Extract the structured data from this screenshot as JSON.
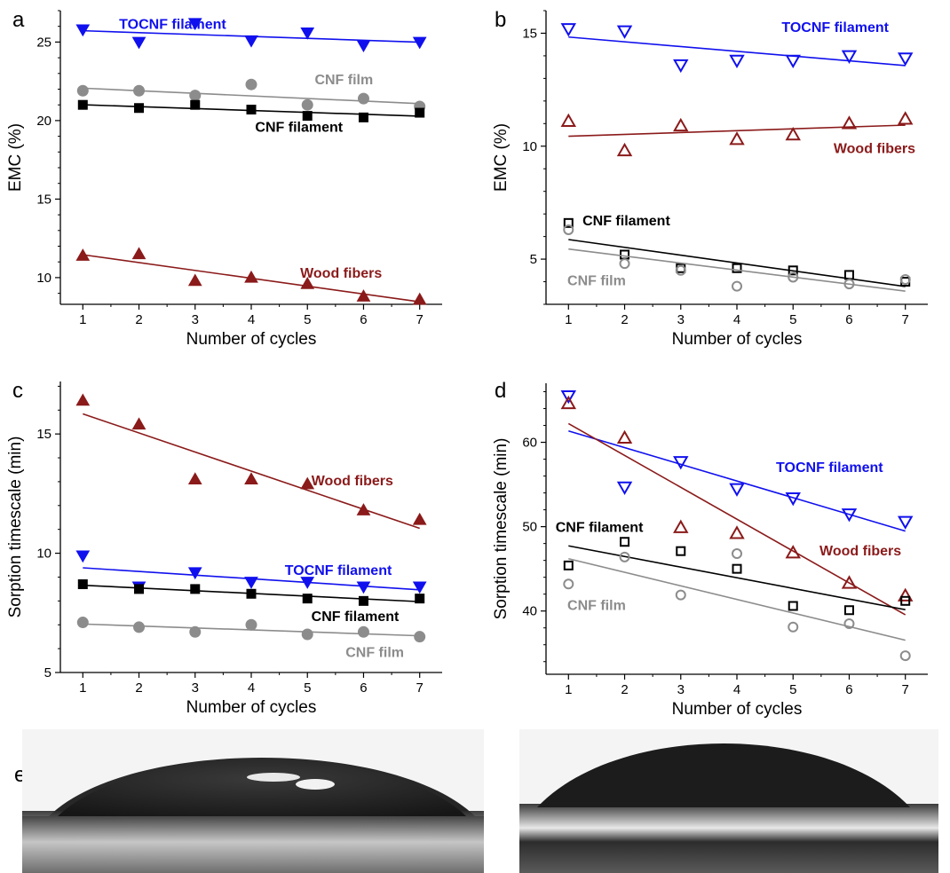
{
  "colors": {
    "tocnf": "#1010ee",
    "wood": "#8b1a1a",
    "cnf_filament": "#000000",
    "cnf_film": "#8c8c8c"
  },
  "chart_data": [
    {
      "panel": "a",
      "type": "scatter",
      "xlabel": "Number of cycles",
      "ylabel": "EMC (%)",
      "xlim": [
        0.6,
        7.4
      ],
      "ylim": [
        8.3,
        27
      ],
      "xticks": [
        1,
        2,
        3,
        4,
        5,
        6,
        7
      ],
      "yticks": [
        10,
        15,
        20,
        25
      ],
      "trendlines": true,
      "series": [
        {
          "name": "TOCNF filament",
          "color": "tocnf",
          "marker": "triangle-down",
          "filled": true,
          "x": [
            1,
            2,
            3,
            4,
            5,
            6,
            7
          ],
          "y": [
            25.8,
            25.0,
            26.2,
            25.1,
            25.6,
            24.8,
            25.0
          ],
          "label_pos": [
            2.6,
            25.85
          ],
          "label_anchor": "middle"
        },
        {
          "name": "CNF film",
          "color": "cnf_film",
          "marker": "circle",
          "filled": true,
          "x": [
            1,
            2,
            3,
            4,
            5,
            6,
            7
          ],
          "y": [
            21.9,
            21.9,
            21.6,
            22.3,
            21.0,
            21.4,
            20.9
          ],
          "label_pos": [
            5.65,
            22.3
          ],
          "label_anchor": "middle"
        },
        {
          "name": "CNF filament",
          "color": "cnf_filament",
          "marker": "square",
          "filled": true,
          "x": [
            1,
            2,
            3,
            4,
            5,
            6,
            7
          ],
          "y": [
            21.0,
            20.8,
            21.0,
            20.7,
            20.3,
            20.2,
            20.5
          ],
          "label_pos": [
            4.85,
            19.3
          ],
          "label_anchor": "middle"
        },
        {
          "name": "Wood fibers",
          "color": "wood",
          "marker": "triangle-up",
          "filled": true,
          "x": [
            1,
            2,
            3,
            4,
            5,
            6,
            7
          ],
          "y": [
            11.4,
            11.5,
            9.8,
            10.0,
            9.6,
            8.8,
            8.6
          ],
          "label_pos": [
            5.6,
            10.0
          ],
          "label_anchor": "middle"
        }
      ]
    },
    {
      "panel": "b",
      "type": "scatter",
      "xlabel": "Number of cycles",
      "ylabel": "EMC (%)",
      "xlim": [
        0.6,
        7.4
      ],
      "ylim": [
        3.0,
        16.0
      ],
      "xticks": [
        1,
        2,
        3,
        4,
        5,
        6,
        7
      ],
      "yticks": [
        5,
        10,
        15
      ],
      "trendlines": true,
      "series": [
        {
          "name": "TOCNF filament",
          "color": "tocnf",
          "marker": "triangle-down",
          "filled": false,
          "x": [
            1,
            2,
            3,
            4,
            5,
            6,
            7
          ],
          "y": [
            15.2,
            15.1,
            13.6,
            13.8,
            13.8,
            14.0,
            13.9
          ],
          "label_pos": [
            5.75,
            15.05
          ],
          "label_anchor": "middle"
        },
        {
          "name": "Wood fibers",
          "color": "wood",
          "marker": "triangle-up",
          "filled": false,
          "x": [
            1,
            2,
            3,
            4,
            5,
            6,
            7
          ],
          "y": [
            11.1,
            9.8,
            10.9,
            10.3,
            10.5,
            11.0,
            11.2
          ],
          "label_pos": [
            6.45,
            9.7
          ],
          "label_anchor": "middle"
        },
        {
          "name": "CNF filament",
          "color": "cnf_filament",
          "marker": "square",
          "filled": false,
          "x": [
            1,
            2,
            3,
            4,
            5,
            6,
            7
          ],
          "y": [
            6.6,
            5.2,
            4.6,
            4.6,
            4.5,
            4.3,
            4.0
          ],
          "label_pos": [
            1.25,
            6.5
          ],
          "label_anchor": "start"
        },
        {
          "name": "CNF film",
          "color": "cnf_film",
          "marker": "circle",
          "filled": false,
          "x": [
            1,
            2,
            3,
            4,
            5,
            6,
            7
          ],
          "y": [
            6.3,
            4.8,
            4.5,
            3.8,
            4.2,
            3.9,
            4.1
          ],
          "label_pos": [
            1.5,
            3.85
          ],
          "label_anchor": "middle"
        }
      ]
    },
    {
      "panel": "c",
      "type": "scatter",
      "xlabel": "Number of cycles",
      "ylabel": "Sorption timescale (min)",
      "xlim": [
        0.6,
        7.4
      ],
      "ylim": [
        5,
        17.2
      ],
      "xticks": [
        1,
        2,
        3,
        4,
        5,
        6,
        7
      ],
      "yticks": [
        5,
        10,
        15
      ],
      "trendlines": true,
      "series": [
        {
          "name": "Wood fibers",
          "color": "wood",
          "marker": "triangle-up",
          "filled": true,
          "x": [
            1,
            2,
            3,
            4,
            5,
            6,
            7
          ],
          "y": [
            16.4,
            15.4,
            13.1,
            13.1,
            12.9,
            11.8,
            11.4
          ],
          "label_pos": [
            5.8,
            12.85
          ],
          "label_anchor": "middle"
        },
        {
          "name": "TOCNF filament",
          "color": "tocnf",
          "marker": "triangle-down",
          "filled": true,
          "x": [
            1,
            2,
            3,
            4,
            5,
            6,
            7
          ],
          "y": [
            9.9,
            8.6,
            9.2,
            8.8,
            8.8,
            8.6,
            8.6
          ],
          "label_pos": [
            5.55,
            9.1
          ],
          "label_anchor": "middle"
        },
        {
          "name": "CNF filament",
          "color": "cnf_filament",
          "marker": "square",
          "filled": true,
          "x": [
            1,
            2,
            3,
            4,
            5,
            6,
            7
          ],
          "y": [
            8.7,
            8.5,
            8.5,
            8.3,
            8.1,
            8.0,
            8.1
          ],
          "label_pos": [
            5.85,
            7.15
          ],
          "label_anchor": "middle"
        },
        {
          "name": "CNF film",
          "color": "cnf_film",
          "marker": "circle",
          "filled": true,
          "x": [
            1,
            2,
            3,
            4,
            5,
            6,
            7
          ],
          "y": [
            7.1,
            6.9,
            6.7,
            7.0,
            6.6,
            6.7,
            6.5
          ],
          "label_pos": [
            6.2,
            5.65
          ],
          "label_anchor": "middle"
        }
      ]
    },
    {
      "panel": "d",
      "type": "scatter",
      "xlabel": "Number of cycles",
      "ylabel": "Sorption timescale (min)",
      "xlim": [
        0.6,
        7.4
      ],
      "ylim": [
        32.5,
        67
      ],
      "xticks": [
        1,
        2,
        3,
        4,
        5,
        6,
        7
      ],
      "yticks": [
        40,
        50,
        60
      ],
      "trendlines": true,
      "series": [
        {
          "name": "TOCNF filament",
          "color": "tocnf",
          "marker": "triangle-down",
          "filled": false,
          "x": [
            1,
            2,
            3,
            4,
            5,
            6,
            7
          ],
          "y": [
            65.5,
            54.7,
            57.7,
            54.5,
            53.4,
            51.5,
            50.6
          ],
          "label_pos": [
            5.65,
            56.5
          ],
          "label_anchor": "middle"
        },
        {
          "name": "Wood fibers",
          "color": "wood",
          "marker": "triangle-up",
          "filled": false,
          "x": [
            1,
            2,
            3,
            4,
            5,
            6,
            7
          ],
          "y": [
            64.6,
            60.5,
            49.9,
            49.2,
            46.9,
            43.3,
            41.8
          ],
          "label_pos": [
            6.2,
            46.6
          ],
          "label_anchor": "middle"
        },
        {
          "name": "CNF filament",
          "color": "cnf_filament",
          "marker": "square",
          "filled": false,
          "x": [
            1,
            2,
            3,
            4,
            5,
            6,
            7
          ],
          "y": [
            45.4,
            48.2,
            47.1,
            45.0,
            40.6,
            40.1,
            41.2
          ],
          "label_pos": [
            1.55,
            49.4
          ],
          "label_anchor": "middle"
        },
        {
          "name": "CNF film",
          "color": "cnf_film",
          "marker": "circle",
          "filled": false,
          "x": [
            1,
            2,
            3,
            4,
            5,
            6,
            7
          ],
          "y": [
            43.2,
            46.4,
            41.9,
            46.8,
            38.1,
            38.5,
            34.7
          ],
          "label_pos": [
            1.5,
            40.1
          ],
          "label_anchor": "middle"
        }
      ]
    }
  ],
  "photos": {
    "panel": "e"
  }
}
